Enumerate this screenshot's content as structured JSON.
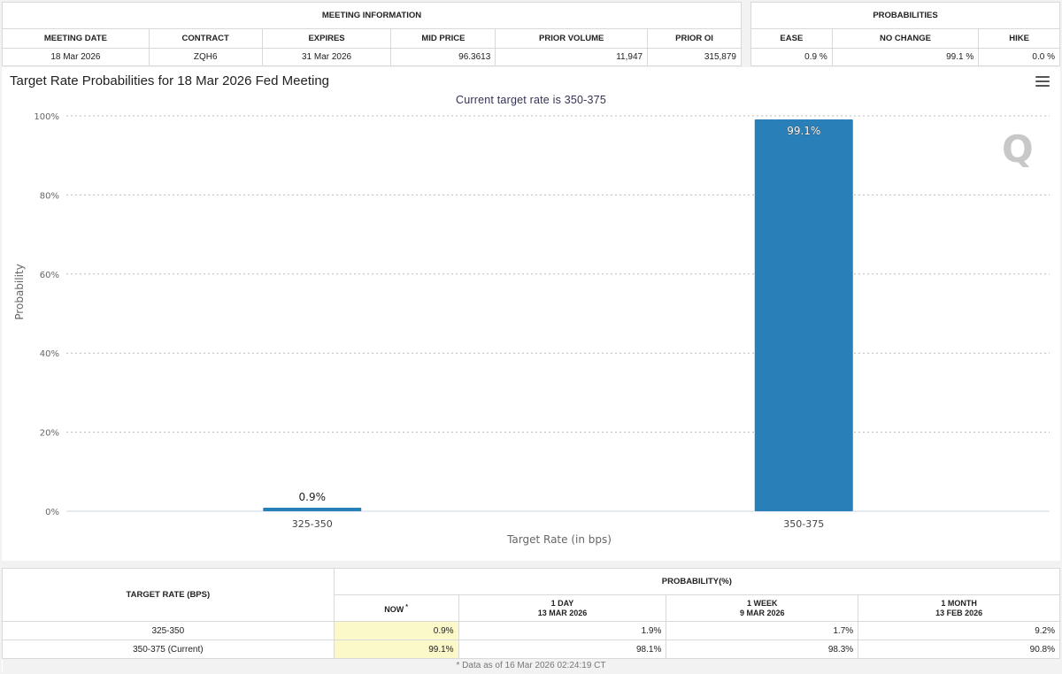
{
  "meeting_info": {
    "title": "MEETING INFORMATION",
    "headers": [
      "MEETING DATE",
      "CONTRACT",
      "EXPIRES",
      "MID PRICE",
      "PRIOR VOLUME",
      "PRIOR OI"
    ],
    "values": [
      "18 Mar 2026",
      "ZQH6",
      "31 Mar 2026",
      "96.3613",
      "11,947",
      "315,879"
    ]
  },
  "probabilities": {
    "title": "PROBABILITIES",
    "headers": [
      "EASE",
      "NO CHANGE",
      "HIKE"
    ],
    "values": [
      "0.9 %",
      "99.1 %",
      "0.0 %"
    ]
  },
  "chart": {
    "title": "Target Rate Probabilities for 18 Mar 2026 Fed Meeting",
    "subtitle": "Current target rate is 350-375",
    "menu_icon": "hamburger-menu-icon",
    "watermark": "Q"
  },
  "chart_data": {
    "type": "bar",
    "title": "Target Rate Probabilities for 18 Mar 2026 Fed Meeting",
    "subtitle": "Current target rate is 350-375",
    "categories": [
      "325-350",
      "350-375"
    ],
    "values": [
      0.9,
      99.1
    ],
    "data_labels": [
      "0.9%",
      "99.1%"
    ],
    "xlabel": "Target Rate (in bps)",
    "ylabel": "Probability",
    "ylim": [
      0,
      100
    ],
    "yticks": [
      "0%",
      "20%",
      "40%",
      "60%",
      "80%",
      "100%"
    ],
    "grid": true,
    "bar_color": "#2980b9"
  },
  "bottom_table": {
    "target_rate_header": "TARGET RATE (BPS)",
    "probability_header": "PROBABILITY(%)",
    "columns": [
      {
        "line1": "NOW",
        "line2": "",
        "sup": "*"
      },
      {
        "line1": "1 DAY",
        "line2": "13 MAR 2026",
        "sup": ""
      },
      {
        "line1": "1 WEEK",
        "line2": "9 MAR 2026",
        "sup": ""
      },
      {
        "line1": "1 MONTH",
        "line2": "13 FEB 2026",
        "sup": ""
      }
    ],
    "rows": [
      {
        "rate": "325-350",
        "values": [
          "0.9%",
          "1.9%",
          "1.7%",
          "9.2%"
        ]
      },
      {
        "rate": "350-375 (Current)",
        "values": [
          "99.1%",
          "98.1%",
          "98.3%",
          "90.8%"
        ]
      }
    ],
    "footnote": "* Data as of 16 Mar 2026 02:24:19 CT"
  }
}
